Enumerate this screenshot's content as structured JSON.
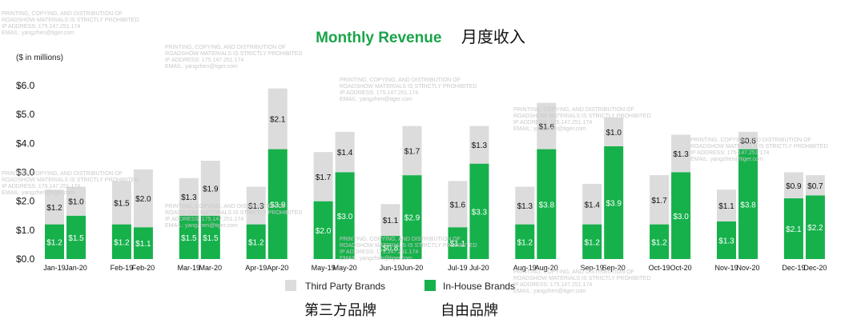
{
  "chart_data": {
    "type": "bar",
    "stacked": true,
    "title": "Monthly Revenue",
    "title_cn": "月度收入",
    "ylabel": "($ in millions)",
    "ylim": [
      0,
      6
    ],
    "yticks": [
      "$0.0",
      "$1.0",
      "$2.0",
      "$3.0",
      "$4.0",
      "$5.0",
      "$6.0"
    ],
    "grid": false,
    "legend_position": "bottom",
    "categories": [
      "Jan-19",
      "Jan-20",
      "Feb-19",
      "Feb-20",
      "Mar-19",
      "Mar-20",
      "Apr-19",
      "Apr-20",
      "May-19",
      "May-20",
      "Jun-19",
      "Jun-20",
      "Jul-19",
      "Jul-20",
      "Aug-19",
      "Aug-20",
      "Sep-19",
      "Sep-20",
      "Oct-19",
      "Oct-20",
      "Nov-19",
      "Nov-20",
      "Dec-19",
      "Dec-20"
    ],
    "series": [
      {
        "name": "In-House Brands",
        "name_cn": "自由品牌",
        "color": "#16b14b",
        "values": [
          1.2,
          1.5,
          1.2,
          1.1,
          1.5,
          1.5,
          1.2,
          3.8,
          2.0,
          3.0,
          0.8,
          2.9,
          1.1,
          3.3,
          1.2,
          3.8,
          1.2,
          3.9,
          1.2,
          3.0,
          1.3,
          3.8,
          2.1,
          2.2
        ]
      },
      {
        "name": "Third Party Brands",
        "name_cn": "第三方品牌",
        "color": "#dcdcdc",
        "values": [
          1.2,
          1.0,
          1.5,
          2.0,
          1.3,
          1.9,
          1.3,
          2.1,
          1.7,
          1.4,
          1.1,
          1.7,
          1.6,
          1.3,
          1.3,
          1.6,
          1.4,
          1.0,
          1.7,
          1.3,
          1.1,
          0.6,
          0.9,
          0.7
        ]
      }
    ]
  },
  "watermark_lines": [
    "PRINTING, COPYING, AND DISTRIBUTION OF",
    "ROADSHOW MATERIALS IS STRICTLY PROHIBITED",
    "IP ADDRESS: 175.147.251.174",
    "EMAIL: yangzhen@tiger.com"
  ]
}
